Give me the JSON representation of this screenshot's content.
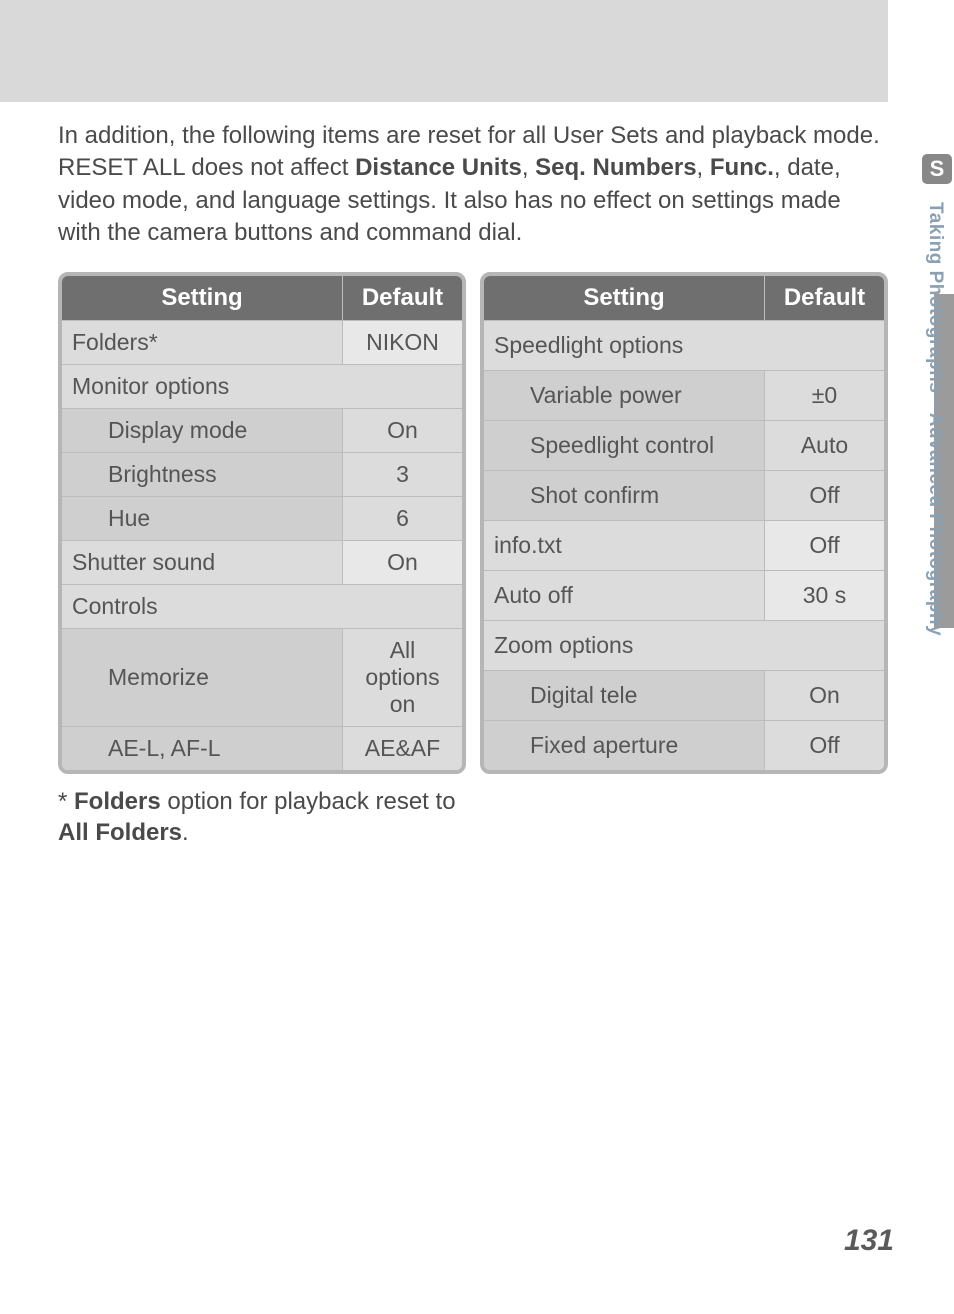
{
  "page_number": "131",
  "side_tab": {
    "icon_letter": "S",
    "text": "Taking Photographs—Advanced Photography"
  },
  "intro": {
    "pre": "In addition, the following items are reset for all User Sets and playback mode. RESET ALL does not affect ",
    "b1": "Distance Units",
    "sep1": ", ",
    "b2": "Seq. Numbers",
    "sep2": ", ",
    "b3": "Func.",
    "post": ", date, video mode, and language settings.  It also has no effect on settings made with the camera buttons and command dial."
  },
  "table_headers": {
    "setting": "Setting",
    "default": "Default"
  },
  "left_table": [
    {
      "type": "row",
      "label": "Folders*",
      "value": "NIKON"
    },
    {
      "type": "section",
      "label": "Monitor options"
    },
    {
      "type": "sub",
      "label": "Display mode",
      "value": "On"
    },
    {
      "type": "sub",
      "label": "Brightness",
      "value": "3"
    },
    {
      "type": "sub",
      "label": "Hue",
      "value": "6"
    },
    {
      "type": "row",
      "label": "Shutter sound",
      "value": "On"
    },
    {
      "type": "section",
      "label": "Controls"
    },
    {
      "type": "sub",
      "label": "Memorize",
      "value": "All options on"
    },
    {
      "type": "sub",
      "label": "AE-L, AF-L",
      "value": "AE&AF"
    }
  ],
  "right_table": [
    {
      "type": "section",
      "label": "Speedlight options"
    },
    {
      "type": "sub",
      "label": "Variable power",
      "value": "±0"
    },
    {
      "type": "sub",
      "label": "Speedlight control",
      "value": "Auto"
    },
    {
      "type": "sub",
      "label": "Shot confirm",
      "value": "Off"
    },
    {
      "type": "row",
      "label": "info.txt",
      "value": "Off"
    },
    {
      "type": "row",
      "label": "Auto off",
      "value": "30 s"
    },
    {
      "type": "section",
      "label": "Zoom options"
    },
    {
      "type": "sub",
      "label": "Digital tele",
      "value": "On"
    },
    {
      "type": "sub",
      "label": "Fixed aperture",
      "value": "Off"
    }
  ],
  "footnote": {
    "star": "*",
    "b1": "Folders",
    "mid": " option for playback reset to ",
    "b2": "All Folders",
    "end": "."
  },
  "colors": {
    "header_bg": "#6f6f6f",
    "header_fg": "#ffffff",
    "border": "#b6b6b6",
    "cell_border": "#bcbcbc",
    "section_bg": "#dcdcdc",
    "sub_label_bg": "#cfcfcf",
    "sub_val_bg": "#dcdcdc",
    "row_label_bg": "#dcdcdc",
    "row_val_bg": "#e8e8e8",
    "page_bg": "#ffffff",
    "topband_bg": "#d9d9d9",
    "side_text_color": "#8aa0b3",
    "side_dark_bg": "#9b9b9b"
  }
}
